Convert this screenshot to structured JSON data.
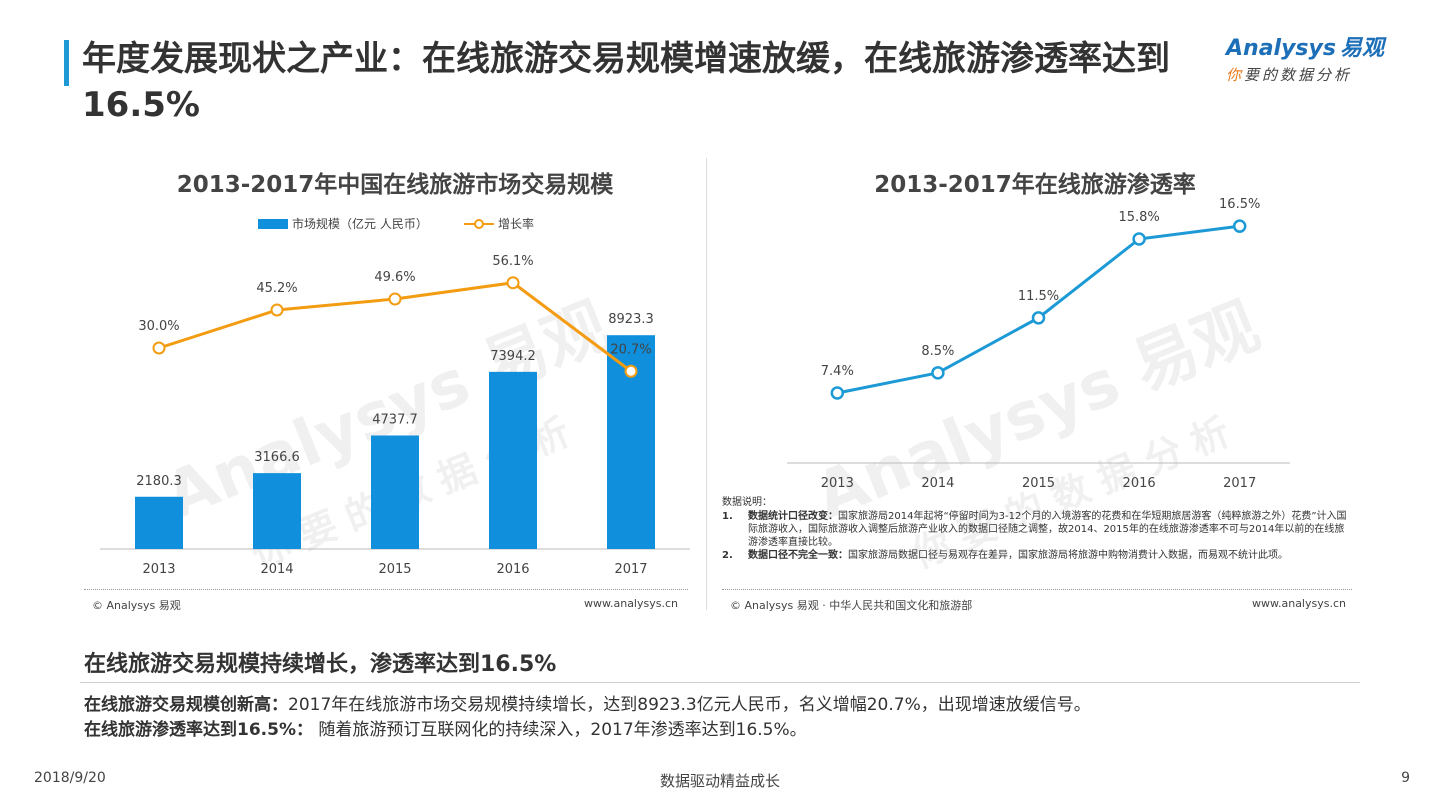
{
  "header": {
    "title": "年度发展现状之产业：在线旅游交易规模增速放缓，在线旅游渗透率达到16.5%"
  },
  "logo": {
    "brand": "Analysys",
    "brand_cn": "易观",
    "tagline_highlight": "你",
    "tagline_rest": "要的数据分析"
  },
  "watermark": {
    "text1": "Analysys 易观",
    "text2": "你要的数据分析"
  },
  "colors": {
    "bar": "#0f8fdc",
    "growth_line": "#f39c12",
    "penetration_line": "#1d9ad6",
    "accent": "#1d9ad6"
  },
  "chart_data": [
    {
      "type": "bar",
      "title": "2013-2017年中国在线旅游市场交易规模",
      "categories": [
        "2013",
        "2014",
        "2015",
        "2016",
        "2017"
      ],
      "series": [
        {
          "name": "市场规模（亿元 人民币）",
          "type": "bar",
          "values": [
            2180.3,
            3166.6,
            4737.7,
            7394.2,
            8923.3
          ],
          "labels": [
            "2180.3",
            "3166.6",
            "4737.7",
            "7394.2",
            "8923.3"
          ]
        },
        {
          "name": "增长率",
          "type": "line",
          "values": [
            30.0,
            45.2,
            49.6,
            56.1,
            20.7
          ],
          "labels": [
            "30.0%",
            "45.2%",
            "49.6%",
            "56.1%",
            "20.7%"
          ]
        }
      ],
      "legend": "top-center",
      "grid": false
    },
    {
      "type": "line",
      "title": "2013-2017年在线旅游渗透率",
      "categories": [
        "2013",
        "2014",
        "2015",
        "2016",
        "2017"
      ],
      "series": [
        {
          "values": [
            7.4,
            8.5,
            11.5,
            15.8,
            16.5
          ],
          "labels": [
            "7.4%",
            "8.5%",
            "11.5%",
            "15.8%",
            "16.5%"
          ]
        }
      ],
      "grid": false
    }
  ],
  "sources": {
    "left_copyright": "© Analysys 易观",
    "left_url": "www.analysys.cn",
    "right_copyright": "© Analysys 易观 · 中华人民共和国文化和旅游部",
    "right_url": "www.analysys.cn"
  },
  "notes": {
    "heading": "数据说明：",
    "items": [
      {
        "num": "1.",
        "bold": "数据统计口径改变：",
        "text": "国家旅游局2014年起将“停留时间为3-12个月的入境游客的花费和在华短期旅居游客（纯粹旅游之外）花费”计入国际旅游收入，国际旅游收入调整后旅游产业收入的数据口径随之调整，故2014、2015年的在线旅游渗透率不可与2014年以前的在线旅游渗透率直接比较。"
      },
      {
        "num": "2.",
        "bold": "数据口径不完全一致：",
        "text": "国家旅游局数据口径与易观存在差异，国家旅游局将旅游中购物消费计入数据，而易观不统计此项。"
      }
    ]
  },
  "summary": {
    "title": "在线旅游交易规模持续增长，渗透率达到16.5%",
    "bullets": [
      {
        "bold": "在线旅游交易规模创新高：",
        "text": "2017年在线旅游市场交易规模持续增长，达到8923.3亿元人民币，名义增幅20.7%，出现增速放缓信号。"
      },
      {
        "bold": "在线旅游渗透率达到16.5%：",
        "text": " 随着旅游预订互联网化的持续深入，2017年渗透率达到16.5%。"
      }
    ]
  },
  "footer": {
    "date": "2018/9/20",
    "center": "数据驱动精益成长",
    "page": "9"
  }
}
